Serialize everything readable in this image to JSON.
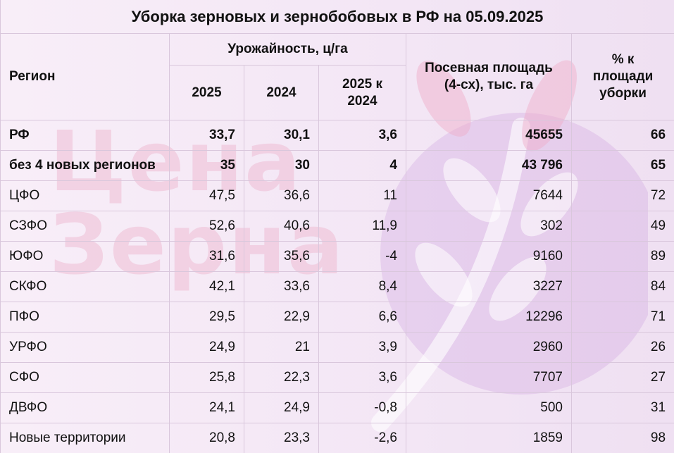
{
  "title": "Уборка зерновых и зернобобовых в РФ на 05.09.2025",
  "watermark": {
    "line1": "Цена",
    "line2": "Зерна"
  },
  "headers": {
    "region": "Регион",
    "yield_group": "Урожайность, ц/га",
    "y2025": "2025",
    "y2024": "2024",
    "diff": "2025 к 2024",
    "area": "Посевная площадь (4-сх), тыс. га",
    "pct": "% к площади уборки"
  },
  "rows": [
    {
      "region": "РФ",
      "y2025": "33,7",
      "y2024": "30,1",
      "diff": "3,6",
      "area": "45655",
      "pct": "66",
      "bold": true
    },
    {
      "region": "без 4 новых регионов",
      "y2025": "35",
      "y2024": "30",
      "diff": "4",
      "area": "43 796",
      "pct": "65",
      "bold": true
    },
    {
      "region": "ЦФО",
      "y2025": "47,5",
      "y2024": "36,6",
      "diff": "11",
      "area": "7644",
      "pct": "72"
    },
    {
      "region": "СЗФО",
      "y2025": "52,6",
      "y2024": "40,6",
      "diff": "11,9",
      "area": "302",
      "pct": "49"
    },
    {
      "region": "ЮФО",
      "y2025": "31,6",
      "y2024": "35,6",
      "diff": "-4",
      "area": "9160",
      "pct": "89"
    },
    {
      "region": "СКФО",
      "y2025": "42,1",
      "y2024": "33,6",
      "diff": "8,4",
      "area": "3227",
      "pct": "84"
    },
    {
      "region": "ПФО",
      "y2025": "29,5",
      "y2024": "22,9",
      "diff": "6,6",
      "area": "12296",
      "pct": "71"
    },
    {
      "region": "УРФО",
      "y2025": "24,9",
      "y2024": "21",
      "diff": "3,9",
      "area": "2960",
      "pct": "26"
    },
    {
      "region": "СФО",
      "y2025": "25,8",
      "y2024": "22,3",
      "diff": "3,6",
      "area": "7707",
      "pct": "27"
    },
    {
      "region": "ДВФО",
      "y2025": "24,1",
      "y2024": "24,9",
      "diff": "-0,8",
      "area": "500",
      "pct": "31"
    },
    {
      "region": "Новые территории",
      "y2025": "20,8",
      "y2024": "23,3",
      "diff": "-2,6",
      "area": "1859",
      "pct": "98"
    }
  ]
}
